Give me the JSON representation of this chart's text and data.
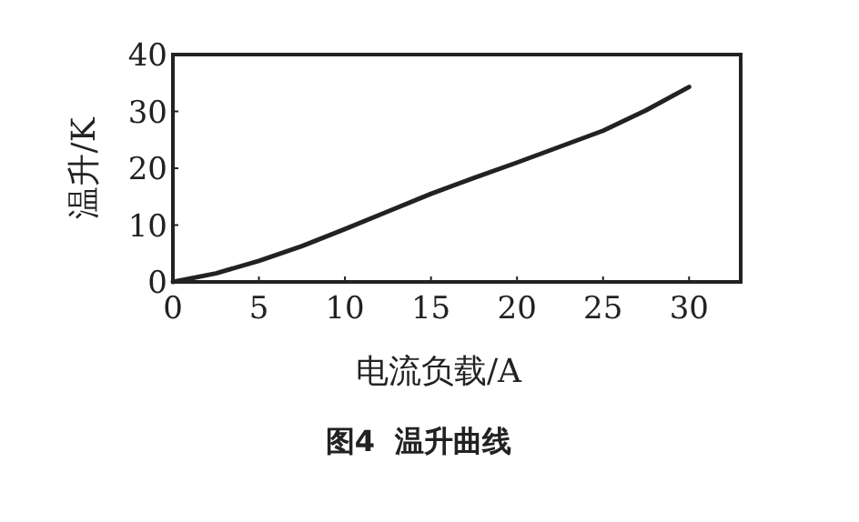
{
  "chart_data": {
    "type": "line",
    "title": "图4  温升曲线",
    "xlabel": "电流负载/A",
    "ylabel": "温升/K",
    "x": [
      0,
      2.5,
      5,
      7.5,
      10,
      12.5,
      15,
      17.5,
      20,
      22.5,
      25,
      27.5,
      30
    ],
    "series": [
      {
        "color": "#222222",
        "values": [
          0,
          1.5,
          3.7,
          6.3,
          9.3,
          12.4,
          15.5,
          18.3,
          21,
          23.8,
          26.6,
          30.2,
          34.3
        ]
      }
    ],
    "xlim": [
      0,
      33
    ],
    "ylim": [
      0,
      40
    ],
    "xticks": [
      0,
      5,
      10,
      15,
      20,
      25,
      30
    ],
    "yticks": [
      0,
      10,
      20,
      30,
      40
    ],
    "grid": false,
    "marker": "none",
    "line_style": "solid"
  }
}
